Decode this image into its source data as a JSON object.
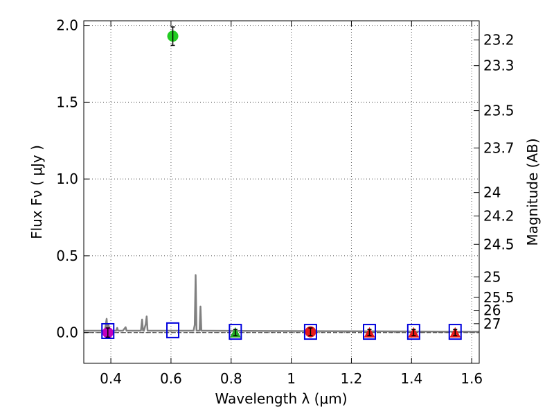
{
  "chart_data": {
    "type": "scatter",
    "xlabel": "Wavelength  λ (μm)",
    "ylabel": "Flux  Fν  ( μJy )",
    "ylabel_right": "Magnitude (AB)",
    "xlim": [
      0.31,
      1.625
    ],
    "ylim": [
      -0.2,
      2.03
    ],
    "grid": true,
    "x_ticks": [
      {
        "value": 0.4,
        "label": "0.4"
      },
      {
        "value": 0.6,
        "label": "0.6"
      },
      {
        "value": 0.8,
        "label": "0.8"
      },
      {
        "value": 1.0,
        "label": "1"
      },
      {
        "value": 1.2,
        "label": "1.2"
      },
      {
        "value": 1.4,
        "label": "1.4"
      },
      {
        "value": 1.6,
        "label": "1.6"
      }
    ],
    "y_ticks": [
      {
        "value": 0.0,
        "label": "0.0"
      },
      {
        "value": 0.5,
        "label": "0.5"
      },
      {
        "value": 1.0,
        "label": "1.0"
      },
      {
        "value": 1.5,
        "label": "1.5"
      },
      {
        "value": 2.0,
        "label": "2.0"
      }
    ],
    "right_ticks": [
      {
        "label": "23.2",
        "flux": 1.905
      },
      {
        "label": "23.3",
        "flux": 1.738
      },
      {
        "label": "23.5",
        "flux": 1.445
      },
      {
        "label": "23.7",
        "flux": 1.202
      },
      {
        "label": "24",
        "flux": 0.912
      },
      {
        "label": "24.2",
        "flux": 0.759
      },
      {
        "label": "24.5",
        "flux": 0.575
      },
      {
        "label": "25",
        "flux": 0.363
      },
      {
        "label": "25.5",
        "flux": 0.229
      },
      {
        "label": "26",
        "flux": 0.145
      },
      {
        "label": "27",
        "flux": 0.058
      }
    ],
    "photometry": [
      {
        "x": 0.39,
        "y": 0.0,
        "yerr": 0.03,
        "marker": "circle",
        "color": "#bf00bf"
      },
      {
        "x": 0.606,
        "y": 1.93,
        "yerr": 0.06,
        "marker": "circle",
        "color": "#22cc22"
      },
      {
        "x": 0.814,
        "y": 0.0,
        "yerr": 0.02,
        "marker": "triangle",
        "color": "#22aa22"
      },
      {
        "x": 1.064,
        "y": 0.005,
        "yerr": 0.025,
        "marker": "circle",
        "color": "#e81818"
      },
      {
        "x": 1.26,
        "y": 0.0,
        "yerr": 0.02,
        "marker": "triangle",
        "color": "#e81818"
      },
      {
        "x": 1.407,
        "y": 0.0,
        "yerr": 0.02,
        "marker": "triangle",
        "color": "#e81818"
      },
      {
        "x": 1.545,
        "y": 0.0,
        "yerr": 0.02,
        "marker": "triangle",
        "color": "#e81818"
      }
    ],
    "model_boxes": [
      {
        "x": 0.39,
        "y": 0.01
      },
      {
        "x": 0.606,
        "y": 0.015
      },
      {
        "x": 0.814,
        "y": 0.005
      },
      {
        "x": 1.064,
        "y": 0.005
      },
      {
        "x": 1.26,
        "y": 0.005
      },
      {
        "x": 1.407,
        "y": 0.005
      },
      {
        "x": 1.545,
        "y": 0.005
      }
    ],
    "template_spectrum": {
      "x": [
        0.31,
        0.38,
        0.386,
        0.389,
        0.392,
        0.398,
        0.418,
        0.421,
        0.424,
        0.44,
        0.449,
        0.452,
        0.455,
        0.5,
        0.504,
        0.507,
        0.51,
        0.516,
        0.519,
        0.522,
        0.53,
        0.675,
        0.679,
        0.682,
        0.685,
        0.689,
        0.695,
        0.698,
        0.701,
        0.71,
        1.0,
        1.3,
        1.625
      ],
      "y": [
        0.012,
        0.012,
        0.09,
        0.012,
        0.05,
        0.012,
        0.012,
        0.03,
        0.012,
        0.012,
        0.035,
        0.012,
        0.012,
        0.012,
        0.085,
        0.012,
        0.012,
        0.055,
        0.105,
        0.012,
        0.012,
        0.012,
        0.05,
        0.375,
        0.012,
        0.012,
        0.012,
        0.17,
        0.012,
        0.012,
        0.01,
        0.008,
        0.006
      ]
    },
    "colors": {
      "spectrum": "#808080",
      "box": "#0000dd",
      "grid": "#555555",
      "errorbar": "#000000"
    }
  }
}
